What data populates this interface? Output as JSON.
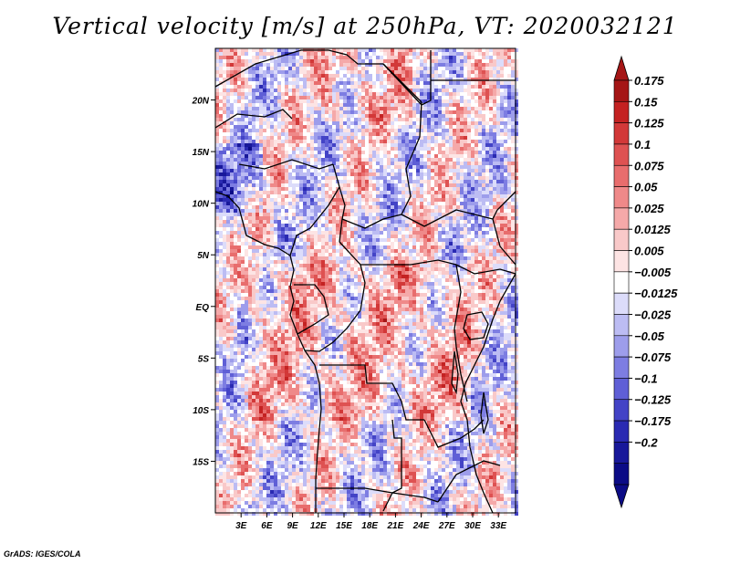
{
  "title": "Vertical velocity [m/s] at 250hPa, VT: 2020032121",
  "credit": "GrADS: IGES/COLA",
  "chart_data": {
    "type": "heatmap",
    "variable": "Vertical velocity",
    "units": "m/s",
    "level": "250hPa",
    "valid_time": "2020032121",
    "lon_range": [
      0,
      35
    ],
    "lat_range": [
      -20,
      25
    ],
    "x_tick_labels": [
      "3E",
      "6E",
      "9E",
      "12E",
      "15E",
      "18E",
      "21E",
      "24E",
      "27E",
      "30E",
      "33E"
    ],
    "x_tick_values": [
      3,
      6,
      9,
      12,
      15,
      18,
      21,
      24,
      27,
      30,
      33
    ],
    "y_tick_labels": [
      "20N",
      "15N",
      "10N",
      "5N",
      "EQ",
      "5S",
      "10S",
      "15S"
    ],
    "y_tick_values": [
      20,
      15,
      10,
      5,
      0,
      -5,
      -10,
      -15
    ],
    "colorbar": {
      "labels": [
        "0.175",
        "0.15",
        "0.125",
        "0.1",
        "0.075",
        "0.05",
        "0.025",
        "0.0125",
        "0.005",
        "−0.005",
        "−0.0125",
        "−0.025",
        "−0.05",
        "−0.075",
        "−0.1",
        "−0.125",
        "−0.175",
        "−0.2"
      ],
      "colors": [
        "#a51616",
        "#c42222",
        "#d23838",
        "#de5252",
        "#e86d6d",
        "#ef8989",
        "#f5a9a9",
        "#f9c9c9",
        "#fde4e4",
        "#ffffff",
        "#dcdcfa",
        "#bcbcf3",
        "#9d9deb",
        "#7d7de2",
        "#5f5fd6",
        "#4343c6",
        "#2a2ab2",
        "#18189a",
        "#0b0b86"
      ],
      "extend": "both"
    }
  }
}
